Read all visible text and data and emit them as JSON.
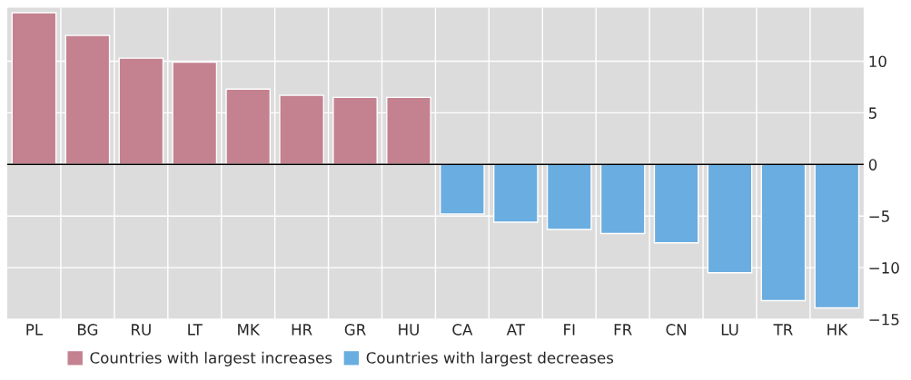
{
  "chart_data": {
    "type": "bar",
    "categories": [
      "PL",
      "BG",
      "RU",
      "LT",
      "MK",
      "HR",
      "GR",
      "HU",
      "CA",
      "AT",
      "FI",
      "FR",
      "CN",
      "LU",
      "TR",
      "HK"
    ],
    "series": [
      {
        "name": "Countries with largest increases",
        "color": "#c48190",
        "values": [
          14.7,
          12.5,
          10.3,
          9.9,
          7.3,
          6.7,
          6.5,
          6.5,
          null,
          null,
          null,
          null,
          null,
          null,
          null,
          null
        ]
      },
      {
        "name": "Countries with largest decreases",
        "color": "#6aade0",
        "values": [
          null,
          null,
          null,
          null,
          null,
          null,
          null,
          null,
          -4.8,
          -5.6,
          -6.3,
          -6.7,
          -7.6,
          -10.5,
          -13.2,
          -13.9
        ]
      }
    ],
    "ylim": [
      -15,
      15.2
    ],
    "yticks": [
      {
        "value": -15,
        "label": "−15"
      },
      {
        "value": -10,
        "label": "−10"
      },
      {
        "value": -5,
        "label": "−5"
      },
      0,
      5,
      10
    ],
    "ref_lines": [
      {
        "axis": "y",
        "value": 0,
        "color": "#000000"
      }
    ],
    "grid": true,
    "legend": "bottom"
  }
}
